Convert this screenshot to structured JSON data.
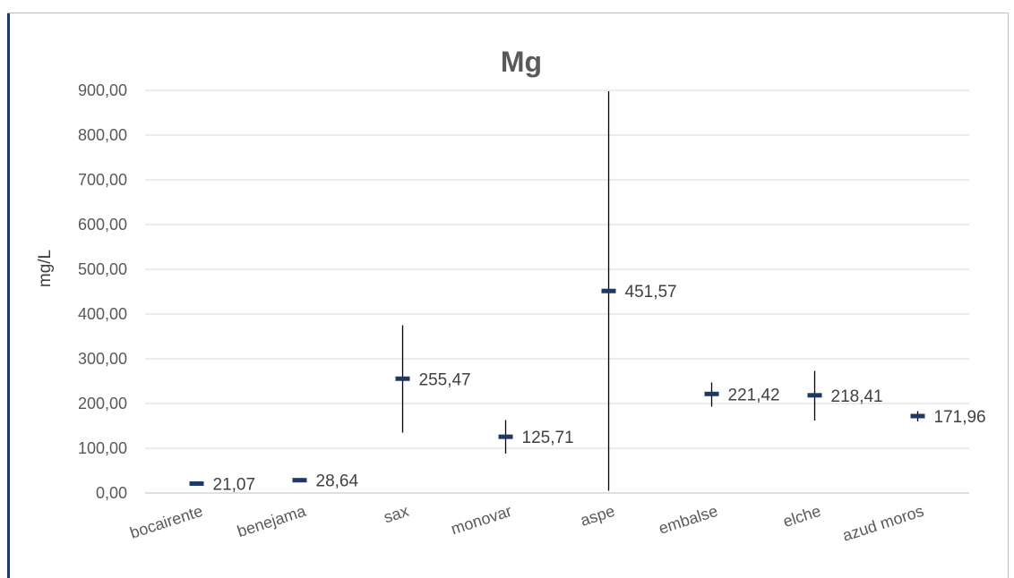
{
  "chart_data": {
    "type": "scatter",
    "title": "Mg",
    "ylabel": "mg/L",
    "xlabel": "",
    "ylim": [
      0,
      900
    ],
    "yticks": [
      0,
      100,
      200,
      300,
      400,
      500,
      600,
      700,
      800,
      900
    ],
    "ytick_labels": [
      "0,00",
      "100,00",
      "200,00",
      "300,00",
      "400,00",
      "500,00",
      "600,00",
      "700,00",
      "800,00",
      "900,00"
    ],
    "categories": [
      "bocairente",
      "benejama",
      "sax",
      "monovar",
      "aspe",
      "embalse",
      "elche",
      "azud moros"
    ],
    "values": [
      21.07,
      28.64,
      255.47,
      125.71,
      451.57,
      221.42,
      218.41,
      171.96
    ],
    "value_labels": [
      "21,07",
      "28,64",
      "255,47",
      "125,71",
      "451,57",
      "221,42",
      "218,41",
      "171,96"
    ],
    "error_low": [
      21.07,
      28.64,
      135,
      88,
      5,
      193,
      162,
      160
    ],
    "error_high": [
      21.07,
      28.64,
      375,
      163,
      898,
      247,
      273,
      183
    ],
    "grid": true,
    "legend": "none",
    "marker_color": "#1f3864",
    "errorbar_color": "#000000",
    "gridline_color": "#d9d9d9"
  }
}
